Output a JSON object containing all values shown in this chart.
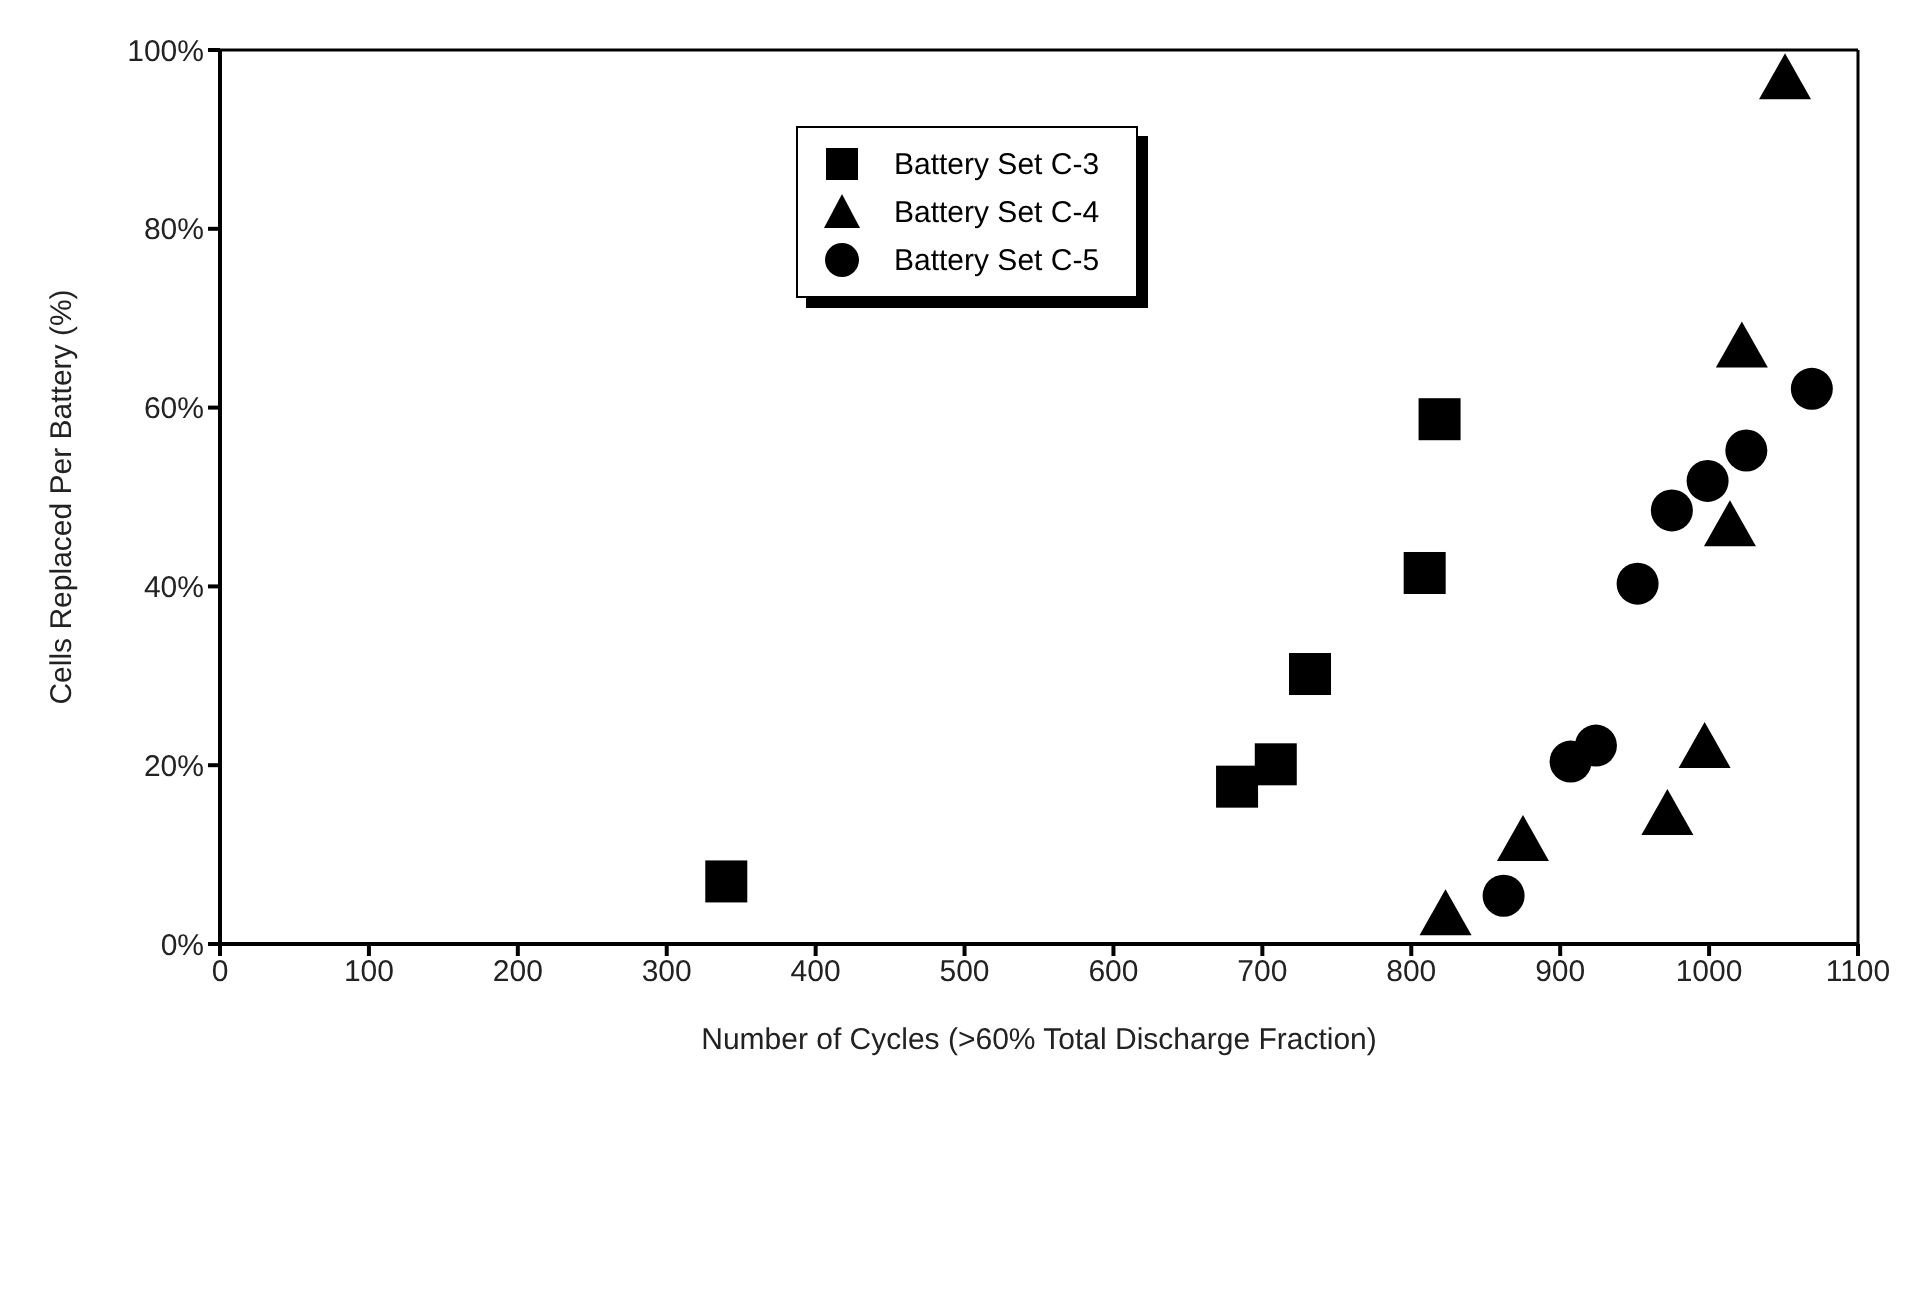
{
  "chart_data": {
    "type": "scatter",
    "xlabel": "Number of Cycles (>60% Total Discharge Fraction)",
    "ylabel": "Cells Replaced Per Battery (%)",
    "xlim": [
      0,
      1100
    ],
    "xticks": [
      0,
      100,
      200,
      300,
      400,
      500,
      600,
      700,
      800,
      900,
      1000,
      1100
    ],
    "ylim": [
      0,
      100
    ],
    "yticks": [
      {
        "value": 0,
        "label": "0%"
      },
      {
        "value": 20,
        "label": "20%"
      },
      {
        "value": 40,
        "label": "40%"
      },
      {
        "value": 60,
        "label": "60%"
      },
      {
        "value": 80,
        "label": "80%"
      },
      {
        "value": 100,
        "label": "100%"
      }
    ],
    "legend": "top",
    "series": [
      {
        "name": "Battery Set C-3",
        "color": "#000000",
        "marker": "square",
        "x": [
          340,
          683,
          709,
          732,
          809,
          819
        ],
        "values": [
          7,
          17.6,
          20.1,
          30.2,
          41.5,
          58.7
        ]
      },
      {
        "name": "Battery Set C-4",
        "color": "#000000",
        "marker": "triangle",
        "x": [
          823,
          875,
          972,
          997,
          1014,
          1022,
          1051
        ],
        "values": [
          3,
          11.3,
          14.2,
          21.7,
          46.5,
          66.5,
          96.5
        ]
      },
      {
        "name": "Battery Set C-5",
        "color": "#000000",
        "marker": "circle",
        "x": [
          862,
          907,
          924,
          952,
          975,
          999,
          1025,
          1069
        ],
        "values": [
          5.4,
          20.4,
          22.2,
          40.3,
          48.5,
          51.8,
          55.2,
          62.1
        ]
      }
    ]
  }
}
